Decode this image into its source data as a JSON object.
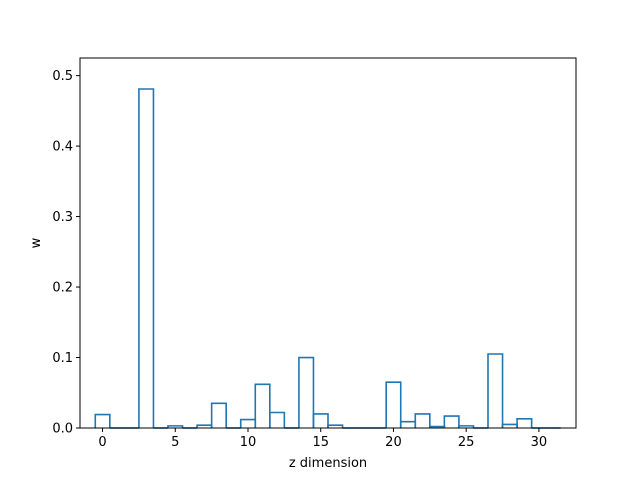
{
  "chart_data": {
    "type": "bar",
    "style": "step-outline",
    "title": "",
    "xlabel": "z dimension",
    "ylabel": "w",
    "xlim": [
      -1.55,
      32.55
    ],
    "ylim": [
      0,
      0.525
    ],
    "grid": false,
    "bar_width": 1,
    "color": "#1f77b4",
    "x": [
      0,
      1,
      2,
      3,
      4,
      5,
      6,
      7,
      8,
      9,
      10,
      11,
      12,
      13,
      14,
      15,
      16,
      17,
      18,
      19,
      20,
      21,
      22,
      23,
      24,
      25,
      26,
      27,
      28,
      29,
      30,
      31
    ],
    "values": [
      0.019,
      0,
      0,
      0.481,
      0,
      0.003,
      0,
      0.004,
      0.035,
      0,
      0.012,
      0.062,
      0.022,
      0,
      0.1,
      0.02,
      0.004,
      0,
      0,
      0,
      0.065,
      0.009,
      0.02,
      0.002,
      0.017,
      0.003,
      0,
      0.105,
      0.005,
      0.013,
      0,
      0
    ],
    "xticks": [
      {
        "value": 0,
        "label": "0"
      },
      {
        "value": 5,
        "label": "5"
      },
      {
        "value": 10,
        "label": "10"
      },
      {
        "value": 15,
        "label": "15"
      },
      {
        "value": 20,
        "label": "20"
      },
      {
        "value": 25,
        "label": "25"
      },
      {
        "value": 30,
        "label": "30"
      }
    ],
    "yticks": [
      {
        "value": 0,
        "label": "0.0"
      },
      {
        "value": 0.1,
        "label": "0.1"
      },
      {
        "value": 0.2,
        "label": "0.2"
      },
      {
        "value": 0.3,
        "label": "0.3"
      },
      {
        "value": 0.4,
        "label": "0.4"
      },
      {
        "value": 0.5,
        "label": "0.5"
      }
    ]
  }
}
